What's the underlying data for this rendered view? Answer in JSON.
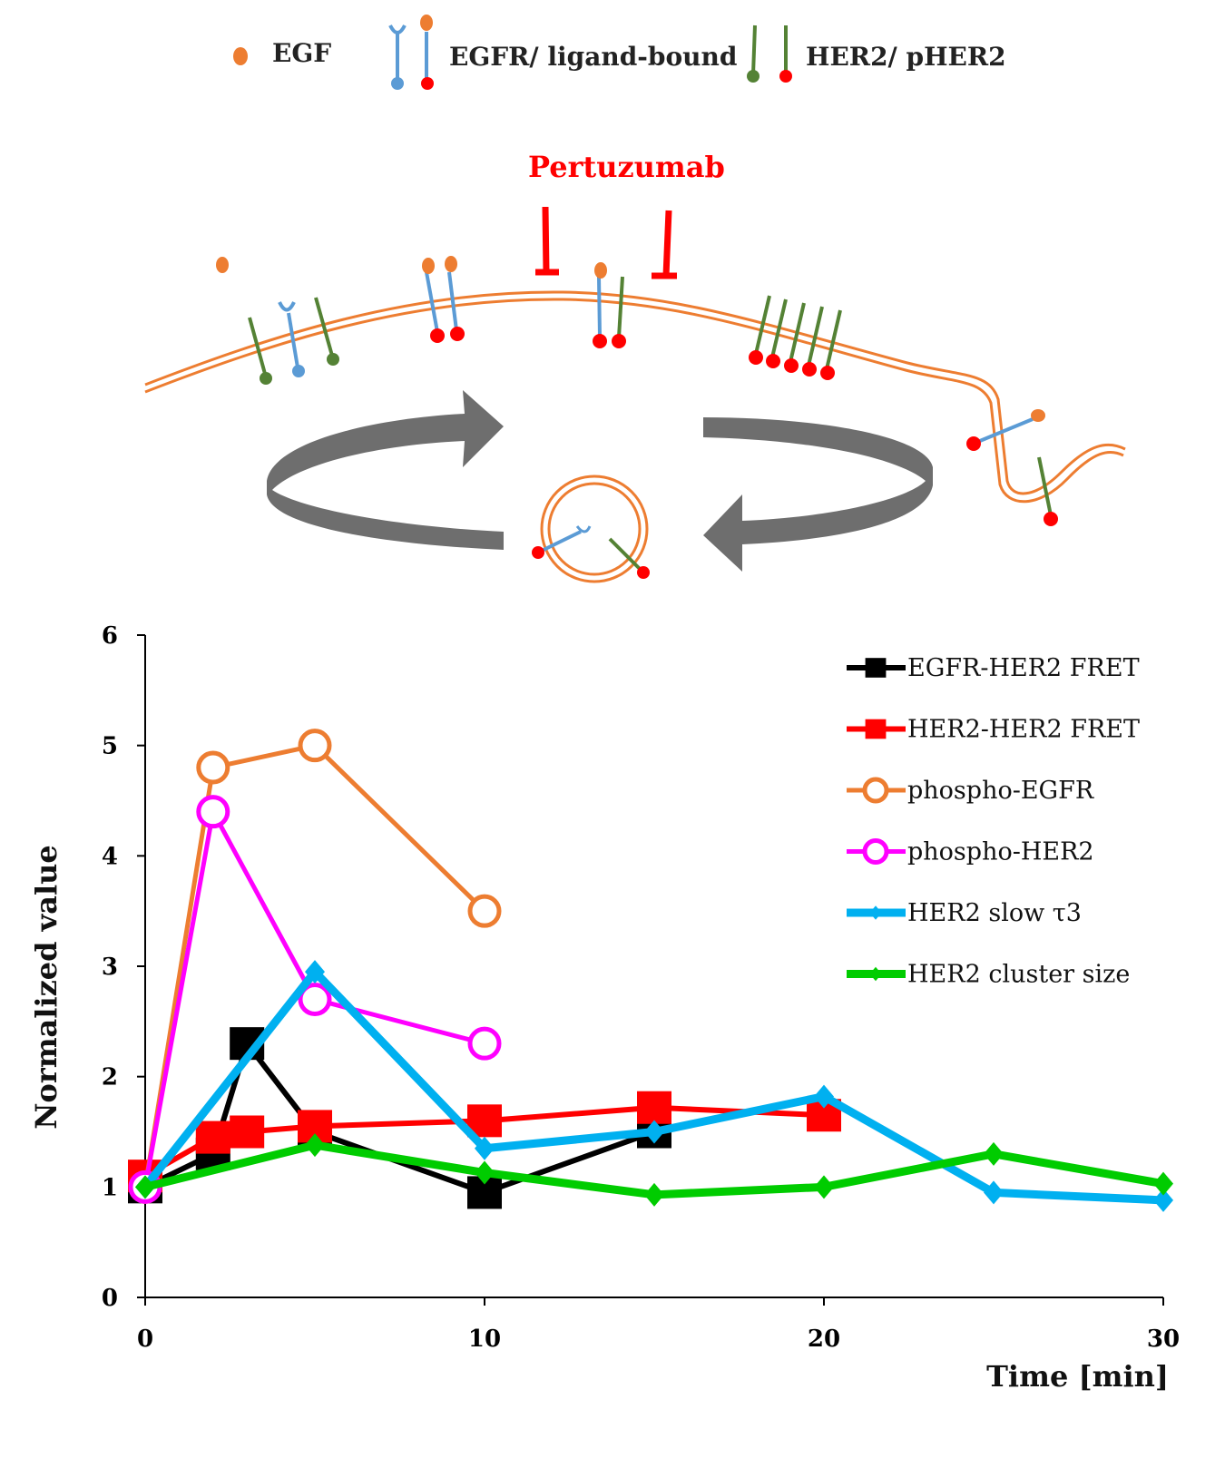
{
  "diagram": {
    "legend": {
      "egf": "EGF",
      "egfr": "EGFR/ ligand-bound",
      "her2": "HER2/ pHER2"
    },
    "drug_label": "Pertuzumab",
    "colors": {
      "membrane": "#ED7D31",
      "egf": "#ED7D31",
      "egfr": "#5B9BD5",
      "her2": "#548235",
      "phospho": "#FF0000",
      "inhibitor": "#FF0000",
      "cycle_arrow": "#6E6E6E"
    }
  },
  "chart_data": {
    "type": "line",
    "xlabel": "Time [min]",
    "ylabel": "Normalized value",
    "xlim": [
      0,
      30
    ],
    "ylim": [
      0,
      6
    ],
    "xticks": [
      0,
      10,
      20,
      30
    ],
    "yticks": [
      0,
      1,
      2,
      3,
      4,
      5,
      6
    ],
    "grid": false,
    "legend_position": "top-right",
    "series": [
      {
        "name": "EGFR-HER2 FRET",
        "color": "#000000",
        "marker": "square",
        "points": [
          [
            0,
            1.0
          ],
          [
            2,
            1.3
          ],
          [
            3,
            2.3
          ],
          [
            5,
            1.5
          ],
          [
            10,
            0.95
          ],
          [
            15,
            1.5
          ]
        ]
      },
      {
        "name": "HER2-HER2 FRET",
        "color": "#FF0000",
        "marker": "square",
        "points": [
          [
            0,
            1.1
          ],
          [
            2,
            1.45
          ],
          [
            3,
            1.5
          ],
          [
            5,
            1.55
          ],
          [
            10,
            1.6
          ],
          [
            15,
            1.72
          ],
          [
            20,
            1.65
          ]
        ]
      },
      {
        "name": "phospho-EGFR",
        "color": "#ED7D31",
        "marker": "open-circle",
        "points": [
          [
            0,
            1.0
          ],
          [
            2,
            4.8
          ],
          [
            5,
            5.0
          ],
          [
            10,
            3.5
          ]
        ]
      },
      {
        "name": "phospho-HER2",
        "color": "#FF00FF",
        "marker": "open-circle",
        "points": [
          [
            0,
            1.0
          ],
          [
            2,
            4.4
          ],
          [
            5,
            2.7
          ],
          [
            10,
            2.3
          ]
        ]
      },
      {
        "name": "HER2 slow τ3",
        "color": "#00B0F0",
        "marker": "diamond",
        "points": [
          [
            0,
            1.0
          ],
          [
            5,
            2.95
          ],
          [
            10,
            1.35
          ],
          [
            15,
            1.5
          ],
          [
            20,
            1.82
          ],
          [
            25,
            0.95
          ],
          [
            30,
            0.88
          ]
        ]
      },
      {
        "name": "HER2 cluster size",
        "color": "#00CC00",
        "marker": "diamond",
        "points": [
          [
            0,
            1.0
          ],
          [
            5,
            1.38
          ],
          [
            10,
            1.13
          ],
          [
            15,
            0.93
          ],
          [
            20,
            1.0
          ],
          [
            25,
            1.3
          ],
          [
            30,
            1.03
          ]
        ]
      }
    ]
  }
}
